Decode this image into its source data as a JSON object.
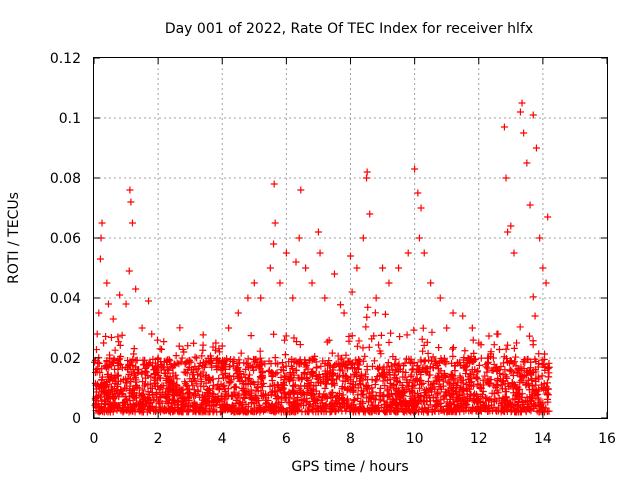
{
  "chart_data": {
    "type": "scatter",
    "title": "Day 001 of 2022, Rate Of TEC Index for receiver hlfx",
    "xlabel": "GPS time / hours",
    "ylabel": "ROTI / TECUs",
    "xlim": [
      0,
      16
    ],
    "ylim": [
      0,
      0.12
    ],
    "x_ticks": [
      0,
      2,
      4,
      6,
      8,
      10,
      12,
      14,
      16
    ],
    "x_tick_labels": [
      "0",
      "2",
      "4",
      "6",
      "8",
      "10",
      "12",
      "14",
      "16"
    ],
    "y_ticks": [
      0,
      0.02,
      0.04,
      0.06,
      0.08,
      0.1,
      0.12
    ],
    "y_tick_labels": [
      "0",
      "0.02",
      "0.04",
      "0.06",
      "0.08",
      "0.1",
      "0.12"
    ],
    "grid": true,
    "marker": "+",
    "color": "#ff0000",
    "data_x_range": [
      0,
      14.2
    ],
    "series": [
      {
        "name": "ROTI",
        "x": [
          0.1,
          0.15,
          0.2,
          0.22,
          0.25,
          0.3,
          0.4,
          0.45,
          0.6,
          0.8,
          1.0,
          1.1,
          1.12,
          1.15,
          1.2,
          1.3,
          1.5,
          1.7,
          1.8,
          2.0,
          2.1,
          2.5,
          2.8,
          3.2,
          3.5,
          3.8,
          4.0,
          4.2,
          4.5,
          4.8,
          5.0,
          5.2,
          5.5,
          5.6,
          5.62,
          5.65,
          5.8,
          6.0,
          6.2,
          6.3,
          6.4,
          6.45,
          6.6,
          6.8,
          7.0,
          7.05,
          7.2,
          7.5,
          7.8,
          8.0,
          8.05,
          8.2,
          8.4,
          8.5,
          8.52,
          8.6,
          8.8,
          9.0,
          9.2,
          9.5,
          9.8,
          10.0,
          10.1,
          10.15,
          10.2,
          10.3,
          10.5,
          10.8,
          11.0,
          11.2,
          11.5,
          11.8,
          12.0,
          12.3,
          12.6,
          12.8,
          12.85,
          12.9,
          13.0,
          13.1,
          13.3,
          13.35,
          13.4,
          13.5,
          13.6,
          13.7,
          13.8,
          13.9,
          14.0,
          14.1,
          14.15
        ],
        "y": [
          0.028,
          0.035,
          0.053,
          0.06,
          0.065,
          0.025,
          0.045,
          0.038,
          0.033,
          0.041,
          0.038,
          0.049,
          0.076,
          0.072,
          0.065,
          0.043,
          0.03,
          0.039,
          0.028,
          0.02,
          0.016,
          0.018,
          0.022,
          0.02,
          0.019,
          0.025,
          0.024,
          0.03,
          0.035,
          0.04,
          0.045,
          0.04,
          0.05,
          0.058,
          0.078,
          0.065,
          0.045,
          0.055,
          0.04,
          0.052,
          0.06,
          0.076,
          0.05,
          0.045,
          0.062,
          0.055,
          0.04,
          0.048,
          0.035,
          0.054,
          0.042,
          0.05,
          0.06,
          0.08,
          0.082,
          0.068,
          0.04,
          0.05,
          0.045,
          0.05,
          0.055,
          0.083,
          0.075,
          0.06,
          0.07,
          0.055,
          0.045,
          0.04,
          0.03,
          0.035,
          0.034,
          0.03,
          0.025,
          0.02,
          0.028,
          0.097,
          0.08,
          0.062,
          0.064,
          0.055,
          0.102,
          0.105,
          0.095,
          0.085,
          0.071,
          0.101,
          0.09,
          0.06,
          0.05,
          0.045,
          0.067
        ]
      }
    ],
    "baseline_band": {
      "x_start": 0.0,
      "x_end": 14.2,
      "y_low": 0.002,
      "y_high": 0.02
    }
  }
}
